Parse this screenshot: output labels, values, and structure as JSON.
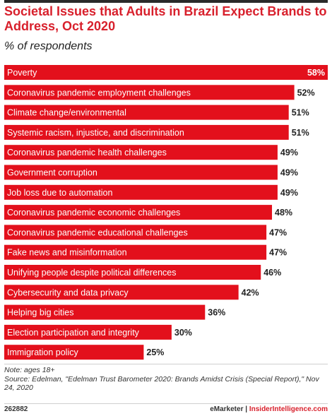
{
  "header": {
    "title": "Societal Issues that Adults in Brazil Expect Brands to Address, Oct 2020",
    "subtitle": "% of respondents"
  },
  "colors": {
    "bar": "#e3101c",
    "title": "#d8202c",
    "text": "#222222"
  },
  "chart_data": {
    "type": "bar",
    "orientation": "horizontal",
    "title": "Societal Issues that Adults in Brazil Expect Brands to Address, Oct 2020",
    "subtitle": "% of respondents",
    "xlabel": "",
    "ylabel": "",
    "xlim": [
      0,
      58
    ],
    "grid": false,
    "categories": [
      "Poverty",
      "Coronavirus pandemic employment challenges",
      "Climate change/environmental",
      "Systemic racism, injustice, and discrimination",
      "Coronavirus pandemic health challenges",
      "Government corruption",
      "Job loss due to automation",
      "Coronavirus pandemic economic challenges",
      "Coronavirus pandemic educational challenges",
      "Fake news and misinformation",
      "Unifying people despite political differences",
      "Cybersecurity and data privacy",
      "Helping big cities",
      "Election participation and integrity",
      "Immigration policy"
    ],
    "values": [
      58,
      52,
      51,
      51,
      49,
      49,
      49,
      48,
      47,
      47,
      46,
      42,
      36,
      30,
      25
    ],
    "value_labels": [
      "58%",
      "52%",
      "51%",
      "51%",
      "49%",
      "49%",
      "49%",
      "48%",
      "47%",
      "47%",
      "46%",
      "42%",
      "36%",
      "30%",
      "25%"
    ]
  },
  "footer": {
    "note": "Note: ages 18+",
    "source": "Source: Edelman, \"Edelman Trust Barometer 2020: Brands Amidst Crisis (Special Report),\" Nov 24, 2020",
    "chart_id": "262882",
    "brand_left": "eMarketer",
    "separator": "|",
    "brand_right": "InsiderIntelligence.com"
  }
}
